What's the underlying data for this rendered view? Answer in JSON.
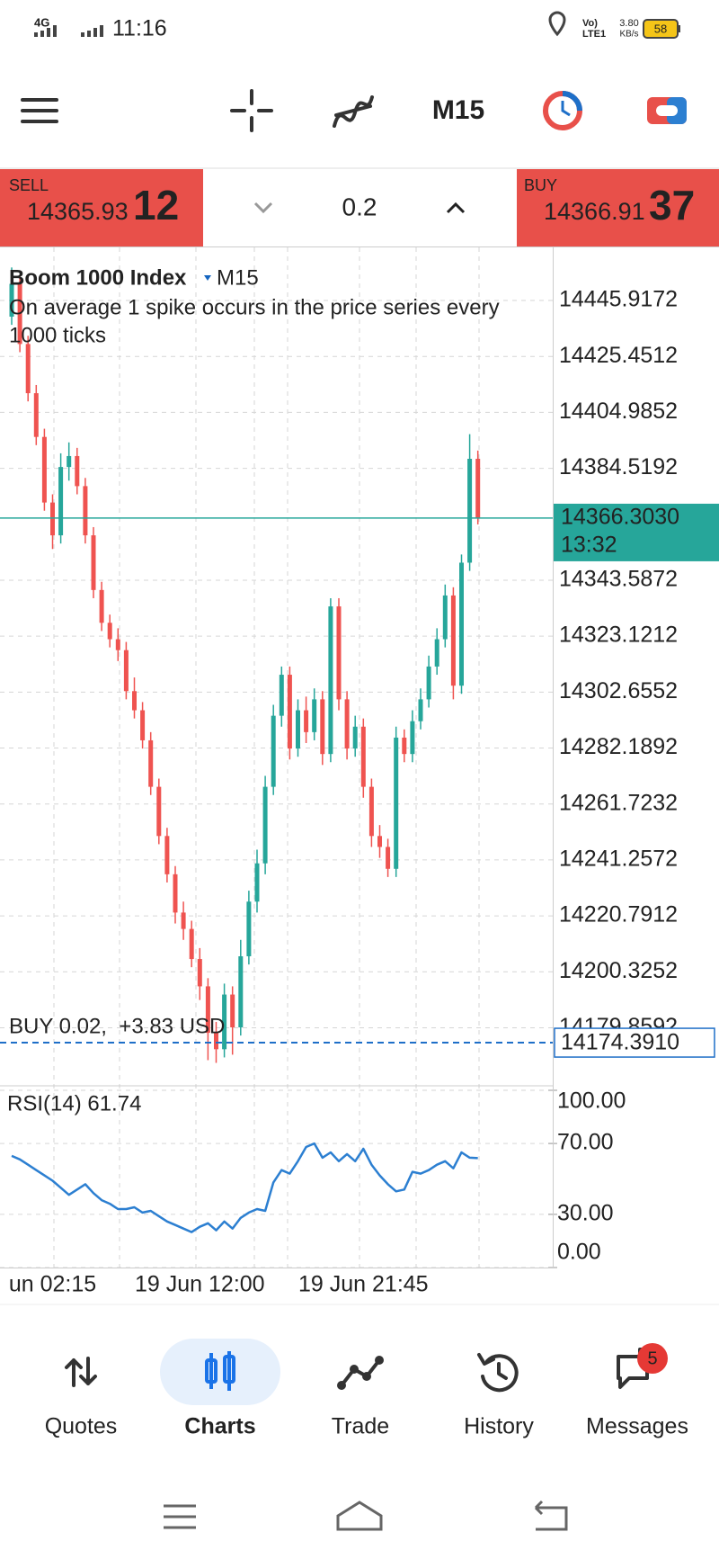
{
  "status_bar": {
    "network": "4G",
    "time": "11:16",
    "volte": "Vo)",
    "lte": "LTE1",
    "speed": "3.80",
    "speed_unit": "KB/s",
    "battery": "58"
  },
  "toolbar": {
    "timeframe": "M15"
  },
  "trade_panel": {
    "sell_label": "SELL",
    "sell_price": "14365.93",
    "sell_price_big": "12",
    "volume": "0.2",
    "buy_label": "BUY",
    "buy_price": "14366.91",
    "buy_price_big": "37"
  },
  "chart_data": [
    {
      "type": "candlestick",
      "title": "Boom 1000 Index",
      "timeframe": "M15",
      "description": [
        "On average 1 spike occurs in the price series every",
        "1000 ticks"
      ],
      "open": [
        14440,
        14452,
        14430,
        14412,
        14396,
        14372,
        14360,
        14385,
        14389,
        14378,
        14360,
        14340,
        14328,
        14322,
        14318,
        14303,
        14296,
        14285,
        14268,
        14250,
        14236,
        14222,
        14216,
        14205,
        14195,
        14178,
        14172,
        14192,
        14180,
        14206,
        14226,
        14240,
        14268,
        14294,
        14309,
        14282,
        14296,
        14288,
        14300,
        14280,
        14334,
        14300,
        14282,
        14290,
        14268,
        14250,
        14246,
        14238,
        14286,
        14280,
        14292,
        14300,
        14312,
        14322,
        14338,
        14305,
        14350,
        14388
      ],
      "high": [
        14458,
        14455,
        14433,
        14415,
        14399,
        14375,
        14390,
        14394,
        14392,
        14381,
        14363,
        14343,
        14331,
        14326,
        14321,
        14308,
        14299,
        14288,
        14271,
        14253,
        14239,
        14226,
        14219,
        14209,
        14198,
        14182,
        14196,
        14195,
        14212,
        14230,
        14245,
        14272,
        14298,
        14312,
        14312,
        14300,
        14301,
        14304,
        14303,
        14337,
        14337,
        14303,
        14294,
        14293,
        14271,
        14254,
        14249,
        14290,
        14289,
        14296,
        14304,
        14316,
        14326,
        14342,
        14341,
        14353,
        14397,
        14391
      ],
      "low": [
        14437,
        14427,
        14409,
        14393,
        14369,
        14355,
        14357,
        14380,
        14375,
        14357,
        14337,
        14325,
        14319,
        14314,
        14300,
        14293,
        14282,
        14265,
        14247,
        14233,
        14218,
        14212,
        14202,
        14190,
        14168,
        14167,
        14169,
        14170,
        14177,
        14203,
        14222,
        14236,
        14265,
        14290,
        14278,
        14279,
        14284,
        14285,
        14276,
        14277,
        14296,
        14278,
        14279,
        14264,
        14246,
        14242,
        14235,
        14235,
        14277,
        14277,
        14289,
        14297,
        14309,
        14319,
        14300,
        14302,
        14347,
        14364
      ],
      "close": [
        14452,
        14430,
        14412,
        14396,
        14372,
        14360,
        14385,
        14389,
        14378,
        14360,
        14340,
        14328,
        14322,
        14318,
        14303,
        14296,
        14285,
        14268,
        14250,
        14236,
        14222,
        14216,
        14205,
        14195,
        14178,
        14172,
        14192,
        14180,
        14206,
        14226,
        14240,
        14268,
        14294,
        14309,
        14282,
        14296,
        14288,
        14300,
        14280,
        14334,
        14300,
        14282,
        14290,
        14268,
        14250,
        14246,
        14238,
        14286,
        14280,
        14292,
        14300,
        14312,
        14322,
        14338,
        14305,
        14350,
        14388,
        14366.3
      ],
      "up_color": "#26a69a",
      "down_color": "#ef5350",
      "ylim": [
        14159.27,
        14465.34
      ],
      "yticks": [
        14445.9172,
        14425.4512,
        14404.9852,
        14384.5192,
        14343.5872,
        14323.1212,
        14302.6552,
        14282.1892,
        14261.7232,
        14241.2572,
        14220.7912,
        14200.3252,
        14179.8592
      ],
      "grid": true,
      "current_price": {
        "value": 14366.303,
        "label": "14366.3030"
      },
      "current_time": "13:32",
      "position": {
        "label": "BUY 0.02,  +3.83 USD",
        "price": {
          "value": 14174.391,
          "label": "14174.3910"
        }
      },
      "position_color": "#1e6fc8"
    },
    {
      "type": "line",
      "title": "RSI(14) 61.74",
      "categories": [
        null,
        null,
        null,
        null,
        null,
        "un 02:15",
        null,
        null,
        null,
        null,
        null,
        null,
        null,
        null,
        null,
        null,
        null,
        null,
        null,
        null,
        null,
        null,
        null,
        "19 Jun 12:00",
        null,
        null,
        null,
        null,
        null,
        null,
        null,
        null,
        null,
        null,
        null,
        null,
        null,
        null,
        null,
        null,
        null,
        null,
        null,
        "19 Jun 21:45",
        null,
        null,
        null,
        null,
        null,
        null,
        null,
        null,
        null,
        null,
        null,
        null,
        null,
        null
      ],
      "values": [
        63,
        61,
        58,
        55,
        52,
        49,
        45,
        41,
        44,
        47,
        42,
        38,
        36,
        33,
        33,
        34,
        31,
        32,
        29,
        26,
        24,
        22,
        20,
        23,
        25,
        21,
        26,
        22,
        28,
        31,
        33,
        32,
        48,
        55,
        53,
        60,
        68,
        70,
        62,
        65,
        60,
        64,
        60,
        67,
        58,
        52,
        47,
        43,
        44,
        54,
        53,
        55,
        58,
        60,
        56,
        65,
        62,
        61.74
      ],
      "color": "#2c7fd1",
      "ylim": [
        0,
        100
      ],
      "yticks": [
        {
          "value": 100,
          "label": "100.00"
        },
        {
          "value": 70,
          "label": "70.00"
        },
        {
          "value": 30,
          "label": "30.00"
        },
        {
          "value": 0,
          "label": "0.00"
        }
      ]
    }
  ],
  "bottom_nav": {
    "items": [
      "Quotes",
      "Charts",
      "Trade",
      "History",
      "Messages"
    ],
    "messages_badge": "5"
  }
}
